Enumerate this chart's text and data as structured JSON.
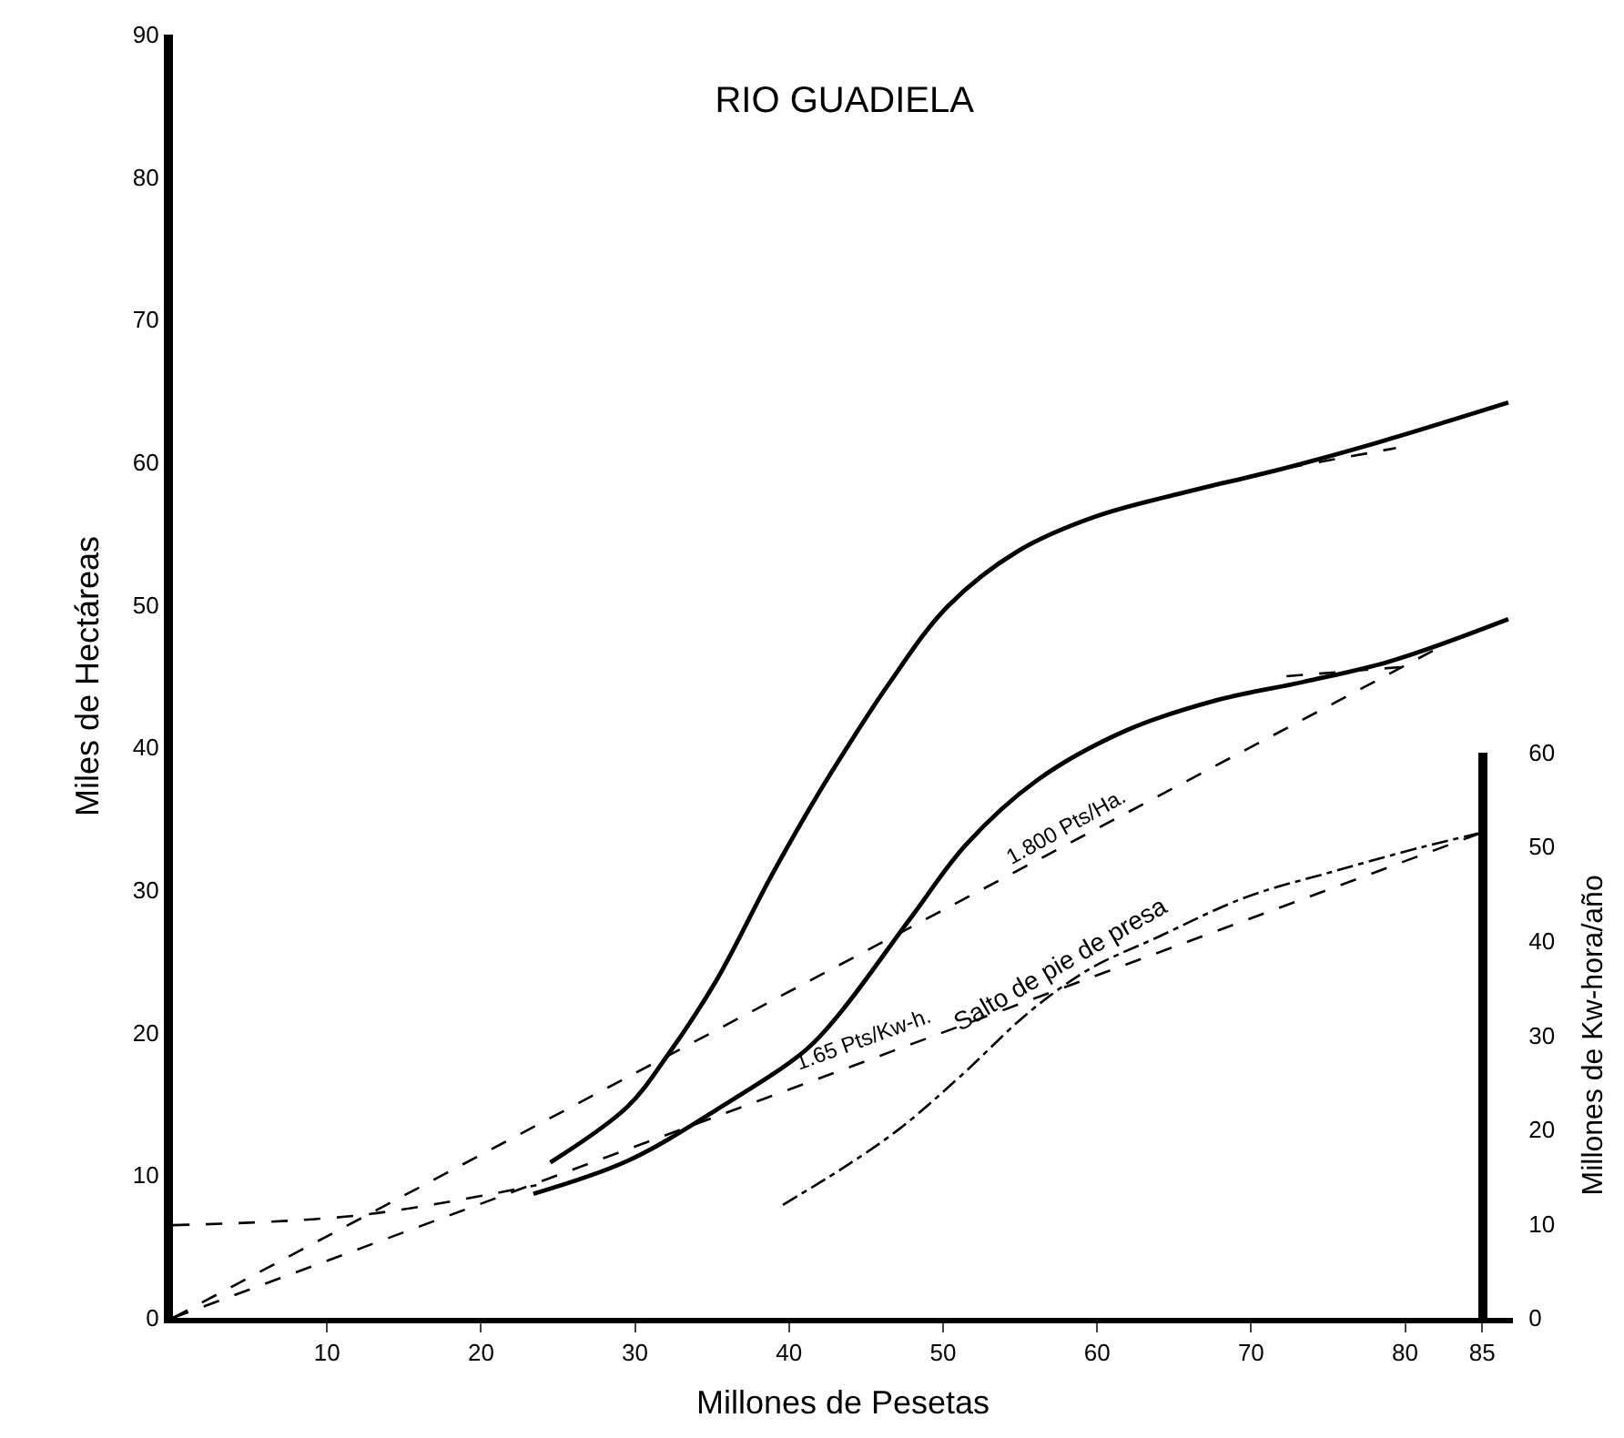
{
  "chart_data": {
    "type": "line",
    "title": "RIO GUADIELA",
    "xlabel": "Millones de Pesetas",
    "ylabel": "Miles de Hectáreas",
    "y2label": "Millones de Kw-hora/año",
    "xlim": [
      0,
      87
    ],
    "xticks": [
      10,
      20,
      30,
      40,
      50,
      60,
      70,
      80,
      85
    ],
    "ylim": [
      0,
      90
    ],
    "yticks": [
      0,
      10,
      20,
      30,
      40,
      50,
      60,
      70,
      80,
      90
    ],
    "y2lim": [
      0,
      60
    ],
    "y2ticks": [
      0,
      10,
      20,
      30,
      40,
      50,
      60
    ],
    "grid": false,
    "marker": "none",
    "series": [
      {
        "color": "#000000",
        "line_style": "solid",
        "x": [
          24.5,
          29.5,
          32.1,
          35.3,
          38.7,
          41.1,
          42.6,
          46.5,
          50.3,
          54.9,
          59.9,
          65.7,
          71.5,
          77.3,
          86.7
        ],
        "values": [
          10.9,
          14.8,
          18.4,
          23.7,
          30.7,
          35.3,
          38.0,
          44.5,
          49.9,
          53.8,
          56.2,
          57.9,
          59.4,
          61.1,
          64.2
        ]
      },
      {
        "color": "#000000",
        "line_style": "solid",
        "x": [
          23.4,
          29.5,
          35.3,
          41.1,
          43.4,
          48.0,
          51.5,
          56.1,
          61.9,
          67.7,
          73.4,
          79.2,
          86.7
        ],
        "values": [
          8.7,
          11.0,
          14.6,
          18.8,
          21.5,
          28.2,
          33.2,
          37.7,
          41.2,
          43.3,
          44.6,
          46.1,
          49.0
        ]
      },
      {
        "color": "#000000",
        "line_style": "dashed",
        "x": [
          0,
          12.1,
          23.6
        ],
        "values": [
          6.5,
          7.2,
          9.3
        ]
      },
      {
        "color": "#000000",
        "line_style": "dashed",
        "x": [
          0,
          82.7
        ],
        "values": [
          0,
          47.3
        ]
      },
      {
        "color": "#000000",
        "line_style": "dashed",
        "x": [
          72.3,
          79.4
        ],
        "values": [
          59.6,
          61.0
        ]
      },
      {
        "color": "#000000",
        "line_style": "dashed",
        "x": [
          72.3,
          80.4
        ],
        "values": [
          45.0,
          45.7
        ]
      },
      {
        "color": "#000000",
        "line_style": "dashed",
        "axis": "y2",
        "x": [
          0,
          85
        ],
        "values": [
          0,
          51.5
        ]
      },
      {
        "color": "#000000",
        "line_style": "dashdot",
        "axis": "y2",
        "x": [
          39.6,
          43.4,
          47.2,
          51.1,
          55.7,
          59.6,
          63.8,
          69.6,
          75.4,
          81.2,
          85.0
        ],
        "values": [
          12.0,
          15.8,
          20.1,
          25.6,
          32.6,
          37.1,
          40.3,
          44.6,
          47.4,
          50.0,
          51.5
        ]
      }
    ],
    "annotations": [
      {
        "text": "1.800 Pts/Ha.",
        "x": 58,
        "y": 33.2
      },
      {
        "text": "1.65 Pts/Kw-h.",
        "x": 45.7,
        "y": 18.3
      },
      {
        "text": "Salto de pie de presa",
        "x": 56,
        "y": 21.8
      }
    ]
  }
}
